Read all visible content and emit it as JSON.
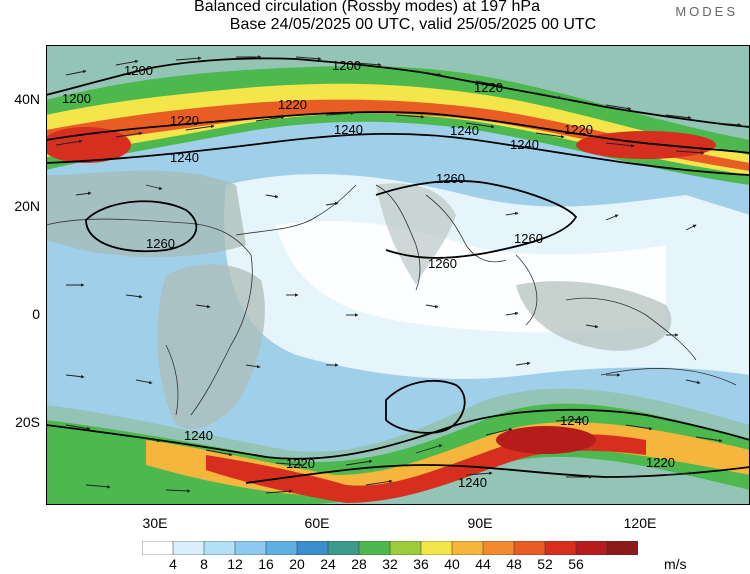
{
  "header": {
    "title_line1": "Balanced circulation (Rossby modes) at 197 hPa",
    "title_line2": "Base 24/05/2025 00 UTC, valid 25/05/2025 00 UTC",
    "brand": "MODES"
  },
  "axes": {
    "lat_labels": [
      "40N",
      "20N",
      "0",
      "20S"
    ],
    "lon_labels": [
      "30E",
      "60E",
      "90E",
      "120E"
    ]
  },
  "contours": [
    "1200",
    "1200",
    "1200",
    "1220",
    "1220",
    "1220",
    "1220",
    "1240",
    "1240",
    "1240",
    "1240",
    "1260",
    "1260",
    "1260",
    "1260",
    "1240",
    "1240",
    "1240",
    "1220",
    "1220"
  ],
  "colorbar": {
    "ticks": [
      "4",
      "8",
      "12",
      "16",
      "20",
      "24",
      "28",
      "32",
      "36",
      "40",
      "44",
      "48",
      "52",
      "56"
    ],
    "colors": [
      "#ffffff",
      "#d8eefb",
      "#b4e0f7",
      "#8ccbef",
      "#5fb0e3",
      "#3a8dce",
      "#3c9a8a",
      "#4cb84e",
      "#9ccc3c",
      "#f4e54a",
      "#f6b53c",
      "#f28a2f",
      "#e85d23",
      "#d62f1f",
      "#b71c1c",
      "#8b1a1a"
    ],
    "unit": "m/s"
  }
}
